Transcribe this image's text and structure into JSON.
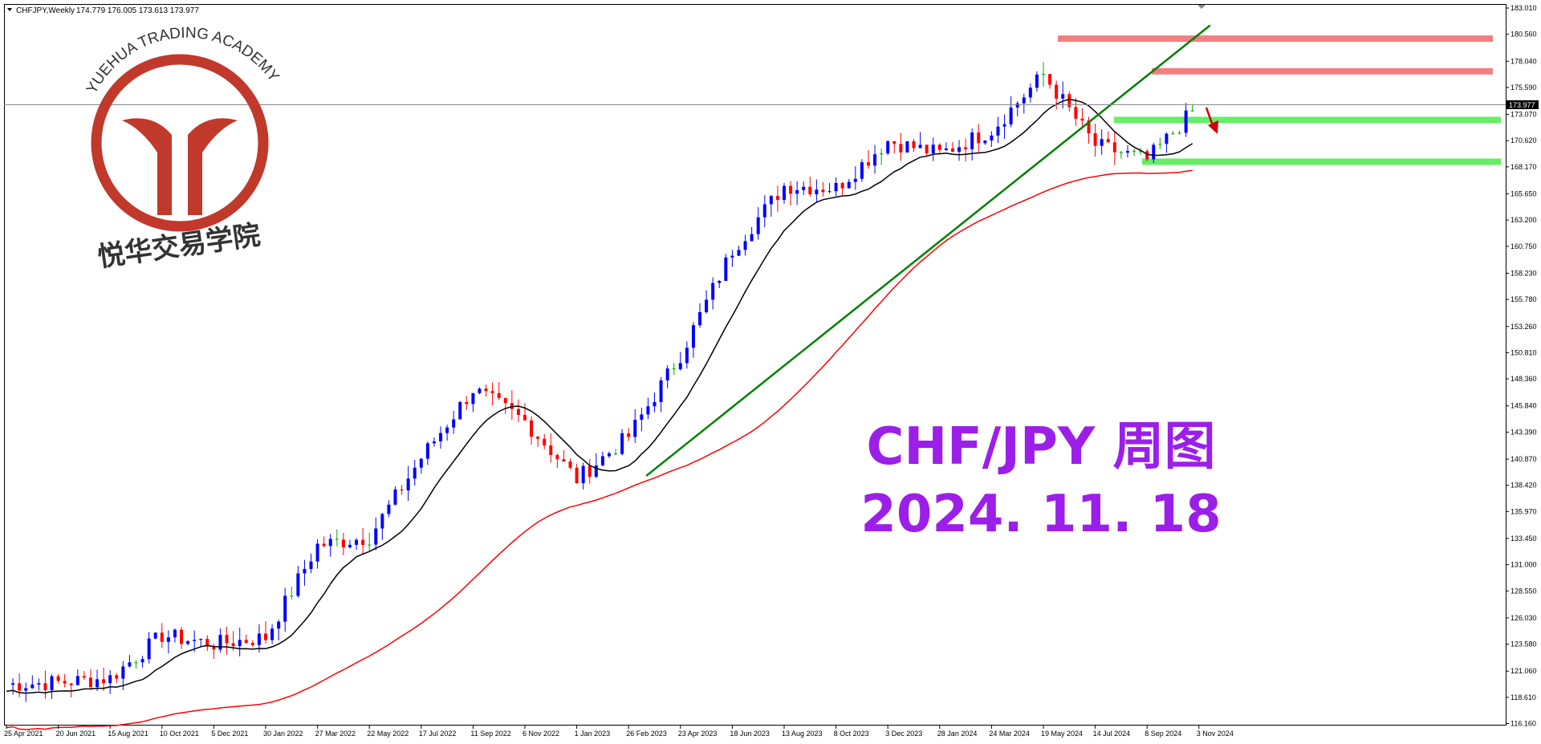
{
  "header": {
    "symbol": "CHFJPY,Weekly",
    "ohlc": "174.779 176.005 173.613 173.977"
  },
  "overlay": {
    "title_line1": "CHF/JPY 周图",
    "title_line2": "2024. 11. 18",
    "color": "#9b1fe8"
  },
  "logo": {
    "english": "YUEHUA TRADING ACADEMY",
    "chinese": "悦华交易学院",
    "color": "#c0392b"
  },
  "current_price_label": "173.977",
  "chart_data": {
    "type": "candlestick",
    "timeframe": "Weekly",
    "ylim": [
      116.2,
      183.01
    ],
    "y_ticks": [
      "183.010",
      "180.560",
      "178.040",
      "175.590",
      "173.070",
      "170.620",
      "168.170",
      "165.650",
      "163.200",
      "160.750",
      "158.230",
      "155.780",
      "153.260",
      "150.810",
      "148.360",
      "145.840",
      "143.390",
      "140.870",
      "138.420",
      "135.970",
      "133.450",
      "131.000",
      "128.550",
      "126.030",
      "123.580",
      "121.060",
      "118.610",
      "116.160"
    ],
    "x_ticks": [
      "25 Apr 2021",
      "20 Jun 2021",
      "15 Aug 2021",
      "10 Oct 2021",
      "5 Dec 2021",
      "30 Jan 2022",
      "27 Mar 2022",
      "22 May 2022",
      "17 Jul 2022",
      "11 Sep 2022",
      "6 Nov 2022",
      "1 Jan 2023",
      "26 Feb 2023",
      "23 Apr 2023",
      "18 Jun 2023",
      "13 Aug 2023",
      "8 Oct 2023",
      "3 Dec 2023",
      "28 Jan 2024",
      "24 Mar 2024",
      "19 May 2024",
      "14 Jul 2024",
      "8 Sep 2024",
      "3 Nov 2024"
    ],
    "close_path": [
      [
        "25 Apr 2021",
        119.8
      ],
      [
        "20 Jun 2021",
        120.0
      ],
      [
        "15 Aug 2021",
        120.4
      ],
      [
        "10 Oct 2021",
        124.4
      ],
      [
        "5 Dec 2021",
        123.6
      ],
      [
        "30 Jan 2022",
        124.2
      ],
      [
        "27 Mar 2022",
        132.8
      ],
      [
        "22 May 2022",
        133.6
      ],
      [
        "17 Jul 2022",
        141.0
      ],
      [
        "11 Sep 2022",
        147.4
      ],
      [
        "6 Nov 2022",
        144.4
      ],
      [
        "1 Jan 2023",
        139.0
      ],
      [
        "26 Feb 2023",
        143.0
      ],
      [
        "23 Apr 2023",
        150.6
      ],
      [
        "18 Jun 2023",
        160.4
      ],
      [
        "13 Aug 2023",
        166.4
      ],
      [
        "8 Oct 2023",
        166.2
      ],
      [
        "3 Dec 2023",
        170.6
      ],
      [
        "28 Jan 2024",
        169.4
      ],
      [
        "24 Mar 2024",
        171.6
      ],
      [
        "19 May 2024",
        176.8
      ],
      [
        "14 Jul 2024",
        170.2
      ],
      [
        "8 Sep 2024",
        168.8
      ],
      [
        "3 Nov 2024",
        173.977
      ]
    ],
    "candle_colors": {
      "up": "#0000ff",
      "down": "#ff0000",
      "doji": "#00aa00"
    },
    "moving_averages": [
      {
        "color": "#000000"
      },
      {
        "color": "#ff0000"
      }
    ],
    "trendline": {
      "color": "#008000",
      "from": [
        "26 Feb 2023",
        139.3
      ],
      "to": [
        "3 Nov 2024",
        181.4
      ]
    },
    "resistance_zones": [
      {
        "price": 180.15,
        "color": "#f08080"
      },
      {
        "price": 177.1,
        "color": "#f08080"
      }
    ],
    "support_zones": [
      {
        "price": 172.55,
        "color": "#66ee66"
      },
      {
        "price": 168.65,
        "color": "#66ee66"
      }
    ],
    "arrow": {
      "direction": "down",
      "color": "#cc0000"
    },
    "current_price": 173.977,
    "grid": false
  }
}
